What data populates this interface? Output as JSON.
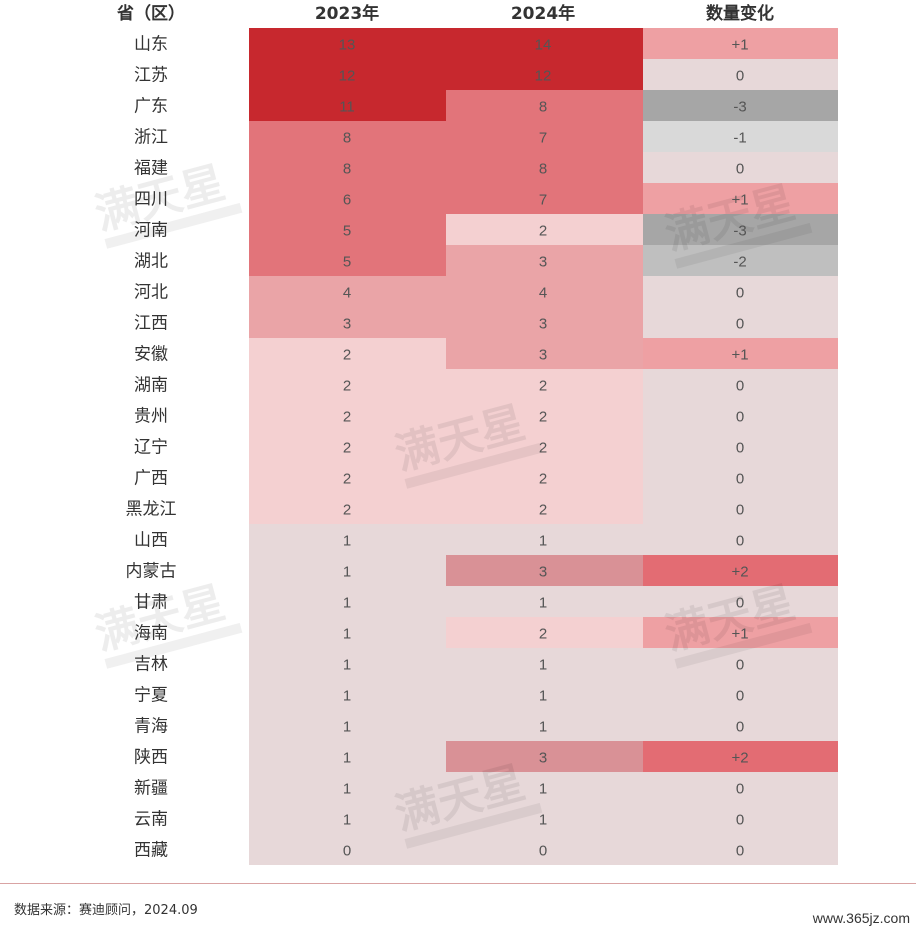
{
  "chart_data": {
    "type": "table",
    "columns": [
      "省（区）",
      "2023年",
      "2024年",
      "数量变化"
    ],
    "rows": [
      {
        "province": "山东",
        "y2023": 13,
        "y2024": 14,
        "change": "+1"
      },
      {
        "province": "江苏",
        "y2023": 12,
        "y2024": 12,
        "change": "0"
      },
      {
        "province": "广东",
        "y2023": 11,
        "y2024": 8,
        "change": "-3"
      },
      {
        "province": "浙江",
        "y2023": 8,
        "y2024": 7,
        "change": "-1"
      },
      {
        "province": "福建",
        "y2023": 8,
        "y2024": 8,
        "change": "0"
      },
      {
        "province": "四川",
        "y2023": 6,
        "y2024": 7,
        "change": "+1"
      },
      {
        "province": "河南",
        "y2023": 5,
        "y2024": 2,
        "change": "-3"
      },
      {
        "province": "湖北",
        "y2023": 5,
        "y2024": 3,
        "change": "-2"
      },
      {
        "province": "河北",
        "y2023": 4,
        "y2024": 4,
        "change": "0"
      },
      {
        "province": "江西",
        "y2023": 3,
        "y2024": 3,
        "change": "0"
      },
      {
        "province": "安徽",
        "y2023": 2,
        "y2024": 3,
        "change": "+1"
      },
      {
        "province": "湖南",
        "y2023": 2,
        "y2024": 2,
        "change": "0"
      },
      {
        "province": "贵州",
        "y2023": 2,
        "y2024": 2,
        "change": "0"
      },
      {
        "province": "辽宁",
        "y2023": 2,
        "y2024": 2,
        "change": "0"
      },
      {
        "province": "广西",
        "y2023": 2,
        "y2024": 2,
        "change": "0"
      },
      {
        "province": "黑龙江",
        "y2023": 2,
        "y2024": 2,
        "change": "0"
      },
      {
        "province": "山西",
        "y2023": 1,
        "y2024": 1,
        "change": "0"
      },
      {
        "province": "内蒙古",
        "y2023": 1,
        "y2024": 3,
        "change": "+2"
      },
      {
        "province": "甘肃",
        "y2023": 1,
        "y2024": 1,
        "change": "0"
      },
      {
        "province": "海南",
        "y2023": 1,
        "y2024": 2,
        "change": "+1"
      },
      {
        "province": "吉林",
        "y2023": 1,
        "y2024": 1,
        "change": "0"
      },
      {
        "province": "宁夏",
        "y2023": 1,
        "y2024": 1,
        "change": "0"
      },
      {
        "province": "青海",
        "y2023": 1,
        "y2024": 1,
        "change": "0"
      },
      {
        "province": "陕西",
        "y2023": 1,
        "y2024": 3,
        "change": "+2"
      },
      {
        "province": "新疆",
        "y2023": 1,
        "y2024": 1,
        "change": "0"
      },
      {
        "province": "云南",
        "y2023": 1,
        "y2024": 1,
        "change": "0"
      },
      {
        "province": "西藏",
        "y2023": 0,
        "y2024": 0,
        "change": "0"
      }
    ]
  },
  "colors": {
    "level_1": "#c7282e",
    "level_2": "#e2747a",
    "level_3": "#eaa4a7",
    "level_4": "#f4d0d1",
    "level_5": "#e7d8d9",
    "level_5b": "#d99196",
    "change_pos1": "#eea0a3",
    "change_pos2": "#e36c73",
    "change_zero": "#e7d8d9",
    "change_neg1": "#d9d9d9",
    "change_neg2": "#bfbfbf",
    "change_neg3": "#a6a6a6"
  },
  "watermark": "满天星",
  "source_note": "数据来源：赛迪顾问，2024.09",
  "site": "www.365jz.com"
}
